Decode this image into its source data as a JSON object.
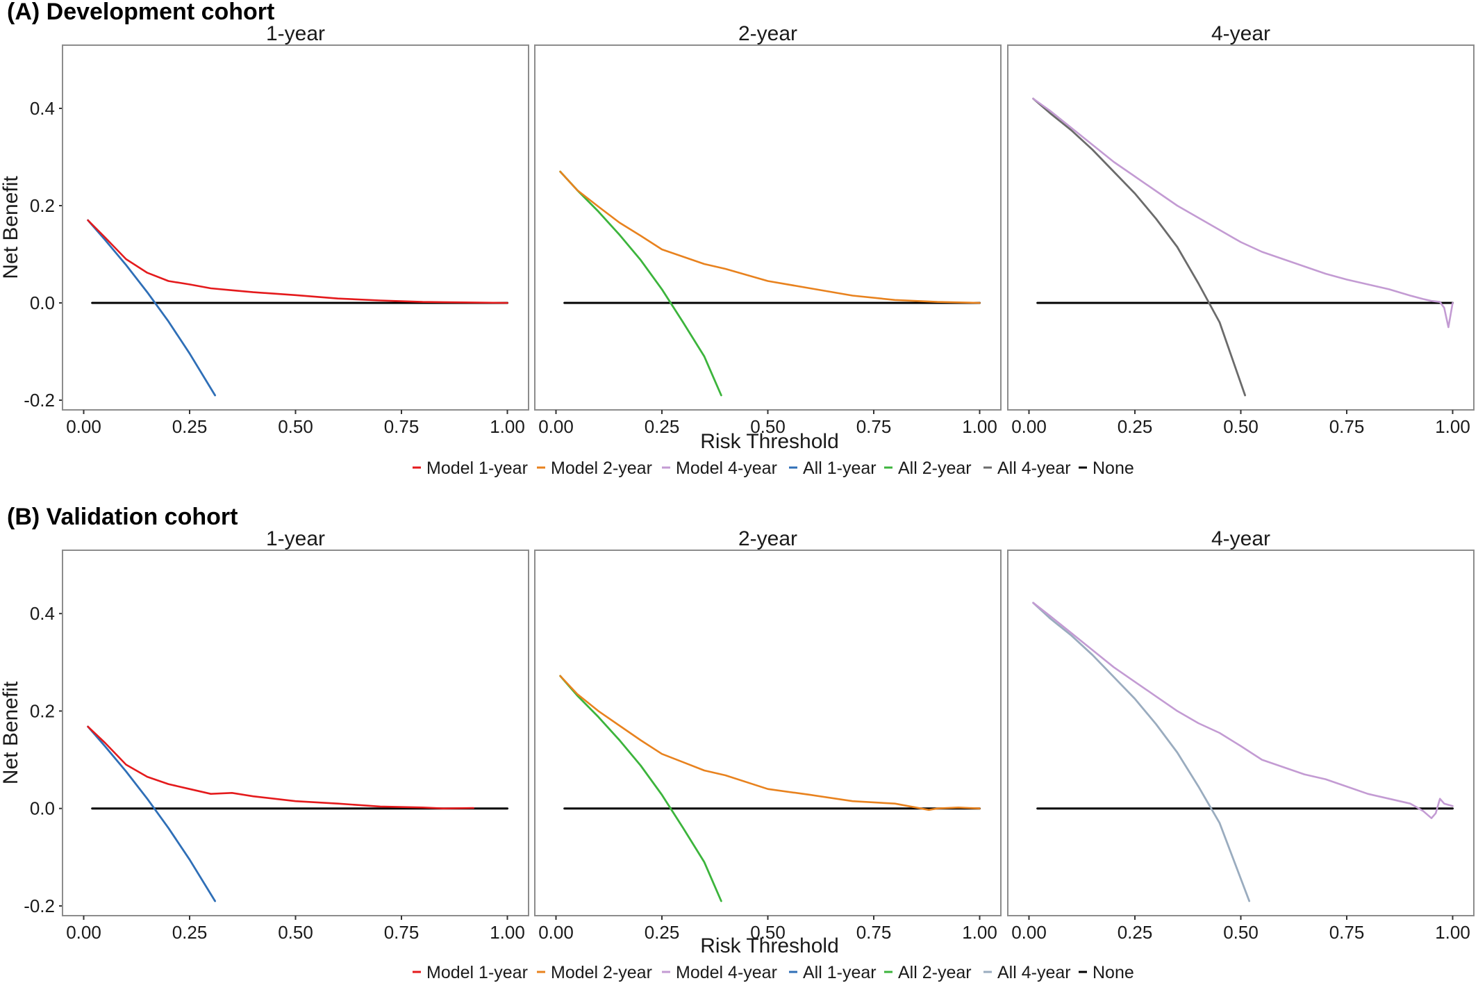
{
  "colors": {
    "model_1y": "#e41a1c",
    "model_2y": "#e8821e",
    "model_4y": "#c39bd3",
    "all_1y": "#2f6fb7",
    "all_2y": "#3cb43c",
    "all_4y_dev": "#6b6b6b",
    "all_4y_val": "#9aacbf",
    "none": "#000000"
  },
  "legend": {
    "items": [
      {
        "label": "Model 1-year",
        "color_key": "model_1y"
      },
      {
        "label": "Model 2-year",
        "color_key": "model_2y"
      },
      {
        "label": "Model 4-year",
        "color_key": "model_4y"
      },
      {
        "label": "All 1-year",
        "color_key": "all_1y"
      },
      {
        "label": "All 2-year",
        "color_key": "all_2y"
      },
      {
        "label": "All 4-year",
        "color_key": "all_4y"
      },
      {
        "label": "None",
        "color_key": "none"
      }
    ]
  },
  "chart_data": [
    {
      "type": "line",
      "title": "(A) Development cohort",
      "xlabel": "Risk Threshold",
      "ylabel": "Net Benefit",
      "xlim": [
        -0.05,
        1.05
      ],
      "ylim": [
        -0.22,
        0.53
      ],
      "xticks": [
        "0.00",
        "0.25",
        "0.50",
        "0.75",
        "1.00"
      ],
      "xtick_values": [
        0,
        0.25,
        0.5,
        0.75,
        1.0
      ],
      "yticks": [
        "-0.2",
        "0.0",
        "0.2",
        "0.4"
      ],
      "ytick_values": [
        -0.2,
        0.0,
        0.2,
        0.4
      ],
      "all_4y_color_key": "all_4y_dev",
      "facets": [
        {
          "title": "1-year",
          "model": {
            "name": "Model 1-year",
            "color_key": "model_1y",
            "x": [
              0.01,
              0.05,
              0.1,
              0.15,
              0.2,
              0.25,
              0.3,
              0.35,
              0.4,
              0.5,
              0.6,
              0.7,
              0.8,
              0.9,
              1.0
            ],
            "y": [
              0.17,
              0.135,
              0.09,
              0.062,
              0.045,
              0.038,
              0.03,
              0.026,
              0.022,
              0.016,
              0.009,
              0.005,
              0.002,
              0.001,
              0.0
            ]
          },
          "all": {
            "name": "All 1-year",
            "color_key": "all_1y",
            "x": [
              0.01,
              0.05,
              0.1,
              0.15,
              0.2,
              0.25,
              0.31
            ],
            "y": [
              0.17,
              0.13,
              0.078,
              0.022,
              -0.038,
              -0.104,
              -0.19
            ]
          },
          "none": {
            "name": "None",
            "color_key": "none",
            "x": [
              0.02,
              1.0
            ],
            "y": [
              0,
              0
            ]
          }
        },
        {
          "title": "2-year",
          "model": {
            "name": "Model 2-year",
            "color_key": "model_2y",
            "x": [
              0.01,
              0.05,
              0.1,
              0.15,
              0.2,
              0.25,
              0.3,
              0.35,
              0.4,
              0.5,
              0.6,
              0.7,
              0.8,
              0.9,
              1.0
            ],
            "y": [
              0.27,
              0.232,
              0.198,
              0.165,
              0.138,
              0.11,
              0.095,
              0.08,
              0.07,
              0.045,
              0.03,
              0.015,
              0.006,
              0.002,
              0.0
            ]
          },
          "all": {
            "name": "All 2-year",
            "color_key": "all_2y",
            "x": [
              0.01,
              0.05,
              0.1,
              0.15,
              0.2,
              0.25,
              0.3,
              0.35,
              0.39
            ],
            "y": [
              0.27,
              0.232,
              0.188,
              0.14,
              0.088,
              0.028,
              -0.04,
              -0.11,
              -0.19
            ]
          },
          "none": {
            "name": "None",
            "color_key": "none",
            "x": [
              0.02,
              1.0
            ],
            "y": [
              0,
              0
            ]
          }
        },
        {
          "title": "4-year",
          "model": {
            "name": "Model 4-year",
            "color_key": "model_4y",
            "x": [
              0.01,
              0.05,
              0.1,
              0.15,
              0.2,
              0.25,
              0.3,
              0.35,
              0.4,
              0.45,
              0.5,
              0.55,
              0.6,
              0.65,
              0.7,
              0.75,
              0.8,
              0.85,
              0.9,
              0.93,
              0.95,
              0.97,
              0.98,
              0.99,
              1.0
            ],
            "y": [
              0.42,
              0.395,
              0.36,
              0.325,
              0.29,
              0.26,
              0.23,
              0.2,
              0.175,
              0.15,
              0.125,
              0.105,
              0.09,
              0.075,
              0.06,
              0.048,
              0.038,
              0.028,
              0.015,
              0.008,
              0.004,
              0.002,
              -0.01,
              -0.05,
              0.0
            ]
          },
          "all": {
            "name": "All 4-year",
            "color_key": "all_4y_dev",
            "x": [
              0.01,
              0.05,
              0.1,
              0.15,
              0.2,
              0.25,
              0.3,
              0.35,
              0.4,
              0.45,
              0.51
            ],
            "y": [
              0.42,
              0.39,
              0.355,
              0.315,
              0.27,
              0.225,
              0.173,
              0.115,
              0.04,
              -0.04,
              -0.19
            ]
          },
          "none": {
            "name": "None",
            "color_key": "none",
            "x": [
              0.02,
              1.0
            ],
            "y": [
              0,
              0
            ]
          }
        }
      ]
    },
    {
      "type": "line",
      "title": "(B) Validation cohort",
      "xlabel": "Risk Threshold",
      "ylabel": "Net Benefit",
      "xlim": [
        -0.05,
        1.05
      ],
      "ylim": [
        -0.22,
        0.53
      ],
      "xticks": [
        "0.00",
        "0.25",
        "0.50",
        "0.75",
        "1.00"
      ],
      "xtick_values": [
        0,
        0.25,
        0.5,
        0.75,
        1.0
      ],
      "yticks": [
        "-0.2",
        "0.0",
        "0.2",
        "0.4"
      ],
      "ytick_values": [
        -0.2,
        0.0,
        0.2,
        0.4
      ],
      "all_4y_color_key": "all_4y_val",
      "facets": [
        {
          "title": "1-year",
          "model": {
            "name": "Model 1-year",
            "color_key": "model_1y",
            "x": [
              0.01,
              0.05,
              0.1,
              0.15,
              0.2,
              0.25,
              0.3,
              0.35,
              0.4,
              0.5,
              0.6,
              0.7,
              0.8,
              0.85,
              0.92
            ],
            "y": [
              0.168,
              0.135,
              0.09,
              0.065,
              0.05,
              0.04,
              0.03,
              0.032,
              0.025,
              0.015,
              0.01,
              0.004,
              0.002,
              0.0,
              0.001
            ]
          },
          "all": {
            "name": "All 1-year",
            "color_key": "all_1y",
            "x": [
              0.01,
              0.05,
              0.1,
              0.15,
              0.2,
              0.25,
              0.31
            ],
            "y": [
              0.168,
              0.128,
              0.076,
              0.02,
              -0.04,
              -0.105,
              -0.19
            ]
          },
          "none": {
            "name": "None",
            "color_key": "none",
            "x": [
              0.02,
              1.0
            ],
            "y": [
              0,
              0
            ]
          }
        },
        {
          "title": "2-year",
          "model": {
            "name": "Model 2-year",
            "color_key": "model_2y",
            "x": [
              0.01,
              0.05,
              0.1,
              0.15,
              0.2,
              0.25,
              0.3,
              0.35,
              0.4,
              0.5,
              0.6,
              0.7,
              0.8,
              0.88,
              0.9,
              0.95,
              1.0
            ],
            "y": [
              0.272,
              0.235,
              0.2,
              0.17,
              0.14,
              0.112,
              0.095,
              0.078,
              0.068,
              0.04,
              0.028,
              0.015,
              0.01,
              -0.003,
              0.0,
              0.002,
              0.0
            ]
          },
          "all": {
            "name": "All 2-year",
            "color_key": "all_2y",
            "x": [
              0.01,
              0.05,
              0.1,
              0.15,
              0.2,
              0.25,
              0.3,
              0.35,
              0.39
            ],
            "y": [
              0.272,
              0.232,
              0.188,
              0.14,
              0.088,
              0.028,
              -0.04,
              -0.11,
              -0.19
            ]
          },
          "none": {
            "name": "None",
            "color_key": "none",
            "x": [
              0.02,
              1.0
            ],
            "y": [
              0,
              0
            ]
          }
        },
        {
          "title": "4-year",
          "model": {
            "name": "Model 4-year",
            "color_key": "model_4y",
            "x": [
              0.01,
              0.05,
              0.1,
              0.15,
              0.2,
              0.25,
              0.3,
              0.35,
              0.4,
              0.45,
              0.5,
              0.55,
              0.6,
              0.65,
              0.7,
              0.75,
              0.8,
              0.85,
              0.9,
              0.93,
              0.95,
              0.96,
              0.97,
              0.98,
              1.0
            ],
            "y": [
              0.422,
              0.395,
              0.36,
              0.325,
              0.29,
              0.26,
              0.23,
              0.2,
              0.175,
              0.155,
              0.128,
              0.1,
              0.085,
              0.07,
              0.06,
              0.045,
              0.03,
              0.02,
              0.01,
              -0.005,
              -0.02,
              -0.01,
              0.02,
              0.01,
              0.005
            ]
          },
          "all": {
            "name": "All 4-year",
            "color_key": "all_4y_val",
            "x": [
              0.01,
              0.05,
              0.1,
              0.15,
              0.2,
              0.25,
              0.3,
              0.35,
              0.4,
              0.45,
              0.52
            ],
            "y": [
              0.422,
              0.39,
              0.355,
              0.315,
              0.27,
              0.225,
              0.173,
              0.115,
              0.045,
              -0.03,
              -0.19
            ]
          },
          "none": {
            "name": "None",
            "color_key": "none",
            "x": [
              0.02,
              1.0
            ],
            "y": [
              0,
              0
            ]
          }
        }
      ]
    }
  ]
}
